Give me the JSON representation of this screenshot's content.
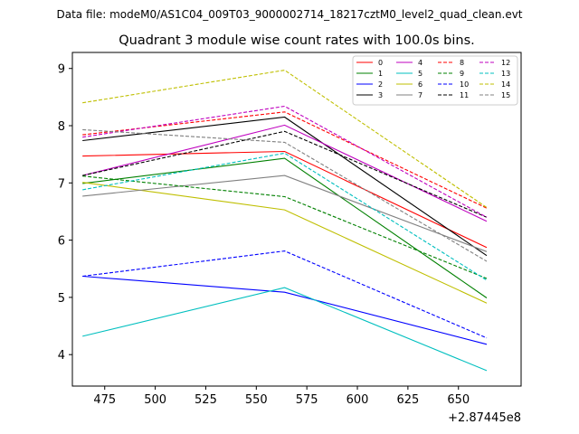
{
  "header_line": "Data file: modeM0/AS1C04_009T03_9000002714_18217cztM0_level2_quad_clean.evt",
  "chart_data": {
    "type": "line",
    "title": "Quadrant 3 module wise count rates with 100.0s bins.",
    "xlabel": "",
    "ylabel": "",
    "x_offset_label": "+2.87445e8",
    "xlim": [
      459,
      681
    ],
    "ylim": [
      3.45,
      9.28
    ],
    "x_ticks": [
      475,
      500,
      525,
      550,
      575,
      600,
      625,
      650
    ],
    "y_ticks": [
      4,
      5,
      6,
      7,
      8,
      9
    ],
    "legend_position": "upper-right",
    "x": [
      464,
      564,
      664
    ],
    "series": [
      {
        "name": "0",
        "color": "#ff0000",
        "dashed": false,
        "values": [
          7.47,
          7.55,
          5.87
        ]
      },
      {
        "name": "1",
        "color": "#008000",
        "dashed": false,
        "values": [
          6.99,
          7.43,
          4.99
        ]
      },
      {
        "name": "2",
        "color": "#0000ff",
        "dashed": false,
        "values": [
          5.37,
          5.09,
          4.18
        ]
      },
      {
        "name": "3",
        "color": "#000000",
        "dashed": false,
        "values": [
          7.74,
          8.15,
          5.73
        ]
      },
      {
        "name": "4",
        "color": "#bf00bf",
        "dashed": false,
        "values": [
          7.13,
          8.01,
          6.33
        ]
      },
      {
        "name": "5",
        "color": "#00bfbf",
        "dashed": false,
        "values": [
          4.32,
          5.17,
          3.72
        ]
      },
      {
        "name": "6",
        "color": "#bfbf00",
        "dashed": false,
        "values": [
          7.01,
          6.53,
          4.9
        ]
      },
      {
        "name": "7",
        "color": "#808080",
        "dashed": false,
        "values": [
          6.77,
          7.13,
          5.8
        ]
      },
      {
        "name": "8",
        "color": "#ff0000",
        "dashed": true,
        "values": [
          7.84,
          8.24,
          6.56
        ]
      },
      {
        "name": "9",
        "color": "#008000",
        "dashed": true,
        "values": [
          7.12,
          6.76,
          5.33
        ]
      },
      {
        "name": "10",
        "color": "#0000ff",
        "dashed": true,
        "values": [
          5.37,
          5.81,
          4.29
        ]
      },
      {
        "name": "11",
        "color": "#000000",
        "dashed": true,
        "values": [
          7.13,
          7.9,
          6.4
        ]
      },
      {
        "name": "12",
        "color": "#bf00bf",
        "dashed": true,
        "values": [
          7.8,
          8.34,
          6.4
        ]
      },
      {
        "name": "13",
        "color": "#00bfbf",
        "dashed": true,
        "values": [
          6.88,
          7.52,
          5.3
        ]
      },
      {
        "name": "14",
        "color": "#bfbf00",
        "dashed": true,
        "values": [
          8.4,
          8.97,
          6.57
        ]
      },
      {
        "name": "15",
        "color": "#808080",
        "dashed": true,
        "values": [
          7.93,
          7.71,
          5.63
        ]
      }
    ]
  }
}
